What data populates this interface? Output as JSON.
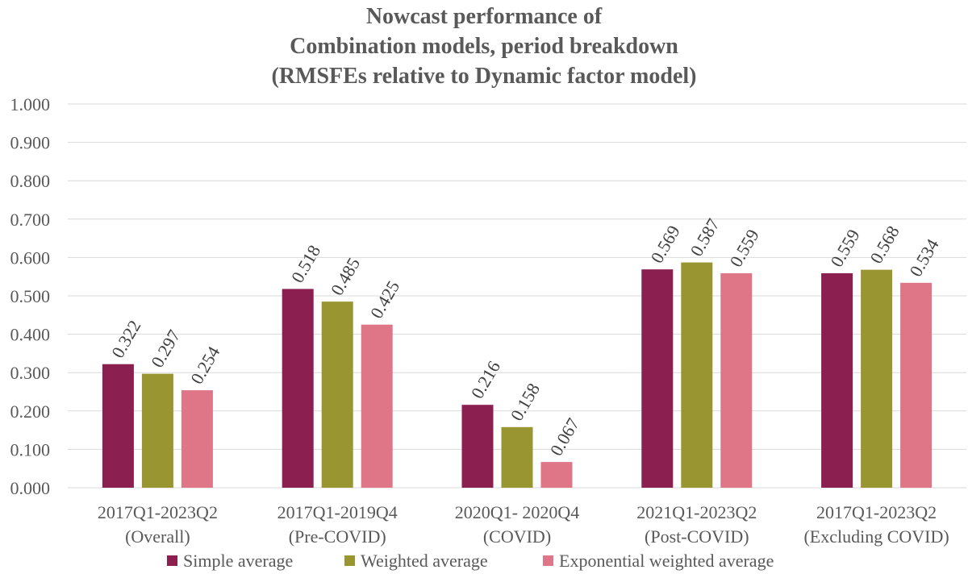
{
  "chart_data": {
    "type": "bar",
    "title": [
      "Nowcast performance of",
      "Combination models, period breakdown",
      "(RMSFEs relative to Dynamic factor model)"
    ],
    "categories": [
      [
        "2017Q1-2023Q2",
        "(Overall)"
      ],
      [
        "2017Q1-2019Q4",
        "(Pre-COVID)"
      ],
      [
        "2020Q1- 2020Q4",
        "(COVID)"
      ],
      [
        "2021Q1-2023Q2",
        "(Post-COVID)"
      ],
      [
        "2017Q1-2023Q2",
        "(Excluding COVID)"
      ]
    ],
    "series": [
      {
        "name": "Simple average",
        "color": "#8B1F50",
        "values": [
          0.322,
          0.518,
          0.216,
          0.569,
          0.559
        ]
      },
      {
        "name": "Weighted average",
        "color": "#999632",
        "values": [
          0.297,
          0.485,
          0.158,
          0.587,
          0.568
        ]
      },
      {
        "name": "Exponential weighted average",
        "color": "#DE7687",
        "values": [
          0.254,
          0.425,
          0.067,
          0.559,
          0.534
        ]
      }
    ],
    "ylim": [
      0,
      1
    ],
    "yticks": [
      "0.000",
      "0.100",
      "0.200",
      "0.300",
      "0.400",
      "0.500",
      "0.600",
      "0.700",
      "0.800",
      "0.900",
      "1.000"
    ],
    "xlabel": "",
    "ylabel": "",
    "grid": true,
    "legend": "bottom"
  }
}
